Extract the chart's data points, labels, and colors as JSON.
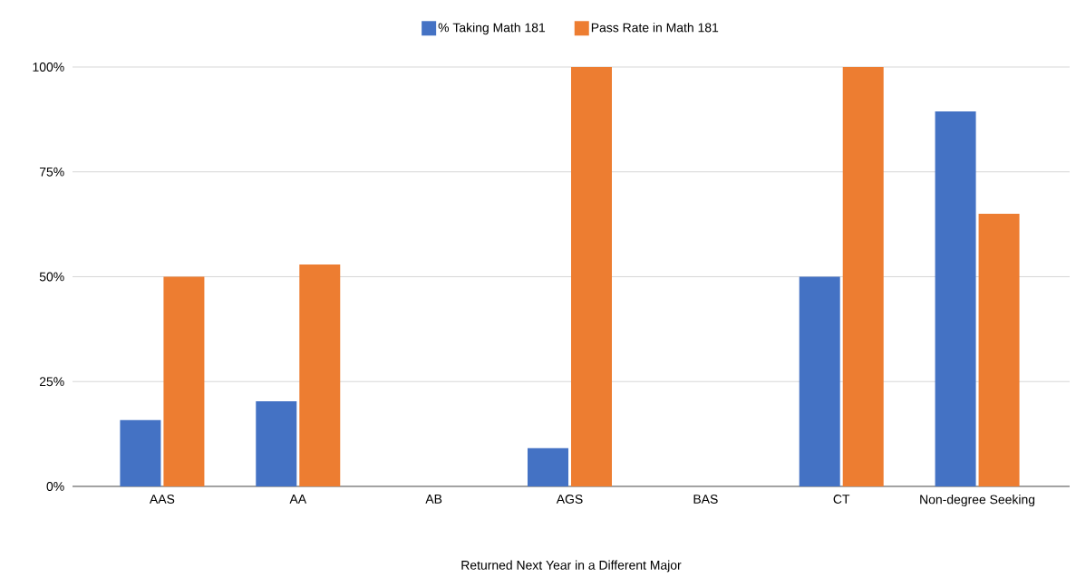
{
  "chart_data": {
    "type": "bar",
    "xlabel": "Returned Next Year in a Different Major",
    "categories": [
      "AAS",
      "AA",
      "AB",
      "AGS",
      "BAS",
      "CT",
      "Non-degree Seeking"
    ],
    "series": [
      {
        "name": "% Taking Math 181",
        "color": "#4472c4",
        "values": [
          15.8,
          20.3,
          null,
          9.1,
          null,
          50,
          89.4
        ]
      },
      {
        "name": "Pass Rate in Math 181",
        "color": "#ed7d31",
        "values": [
          50,
          52.9,
          null,
          100,
          null,
          100,
          65
        ]
      }
    ],
    "ylim": [
      0,
      100
    ],
    "yticks": [
      {
        "value": 0,
        "label": "0%"
      },
      {
        "value": 25,
        "label": "25%"
      },
      {
        "value": 50,
        "label": "50%"
      },
      {
        "value": 75,
        "label": "75%"
      },
      {
        "value": 100,
        "label": "100%"
      }
    ],
    "grid": "y",
    "legend": "top"
  }
}
